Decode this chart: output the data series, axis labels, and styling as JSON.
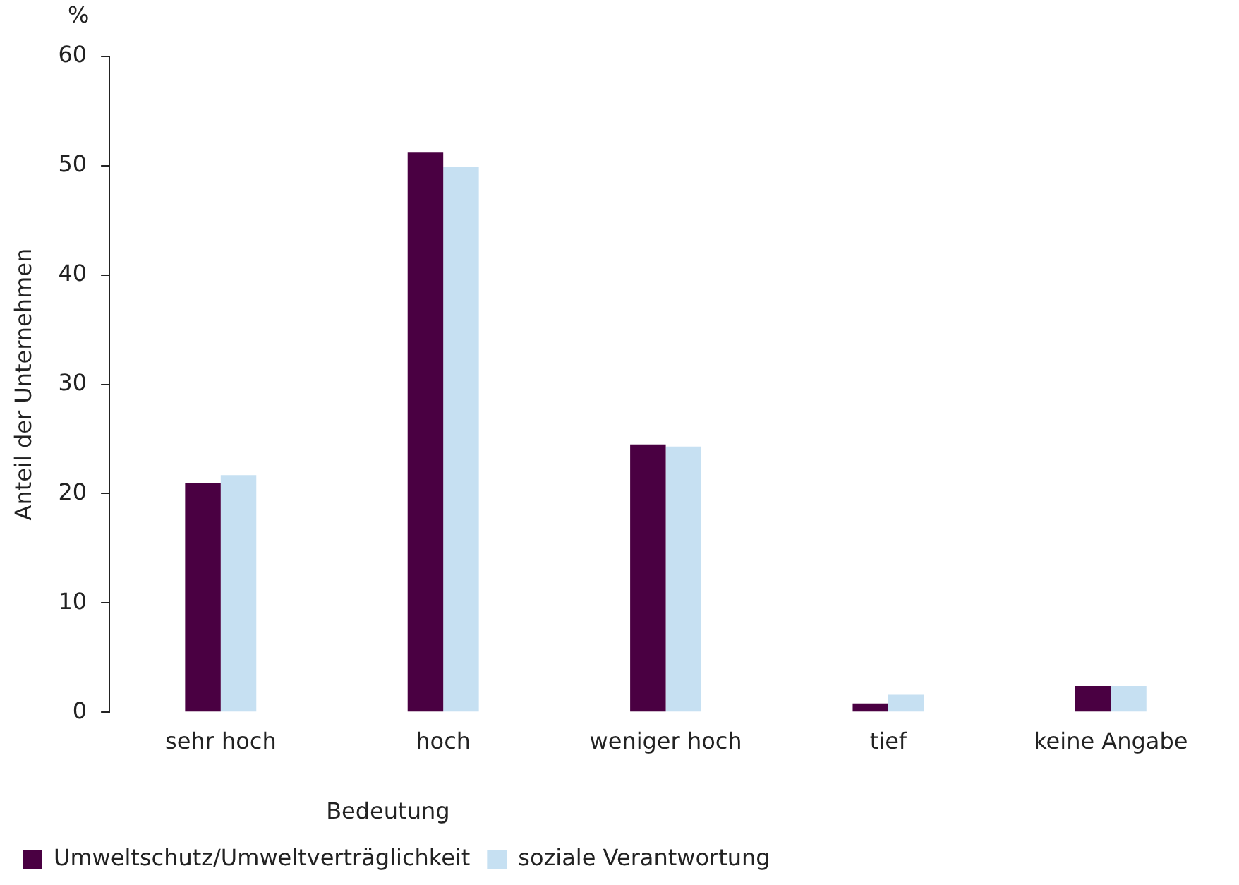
{
  "chart_data": {
    "type": "bar",
    "ylabel": "Anteil der Unternehmen",
    "legend_title": "Bedeutung",
    "annotations": [
      "%"
    ],
    "categories": [
      "sehr hoch",
      "hoch",
      "weniger hoch",
      "tief",
      "keine Angabe"
    ],
    "series": [
      {
        "name": "Umweltschutz/Umweltverträglichkeit",
        "color": "#4a0042",
        "values": [
          21.0,
          51.2,
          24.5,
          0.8,
          2.4
        ]
      },
      {
        "name": "soziale Verantwortung",
        "color": "#c6e0f2",
        "values": [
          21.7,
          49.9,
          24.3,
          1.6,
          2.4
        ]
      }
    ],
    "ylim": [
      0,
      60
    ],
    "yticks": [
      0,
      10,
      20,
      30,
      40,
      50,
      60
    ],
    "grid": false,
    "legend": "bottom left"
  }
}
